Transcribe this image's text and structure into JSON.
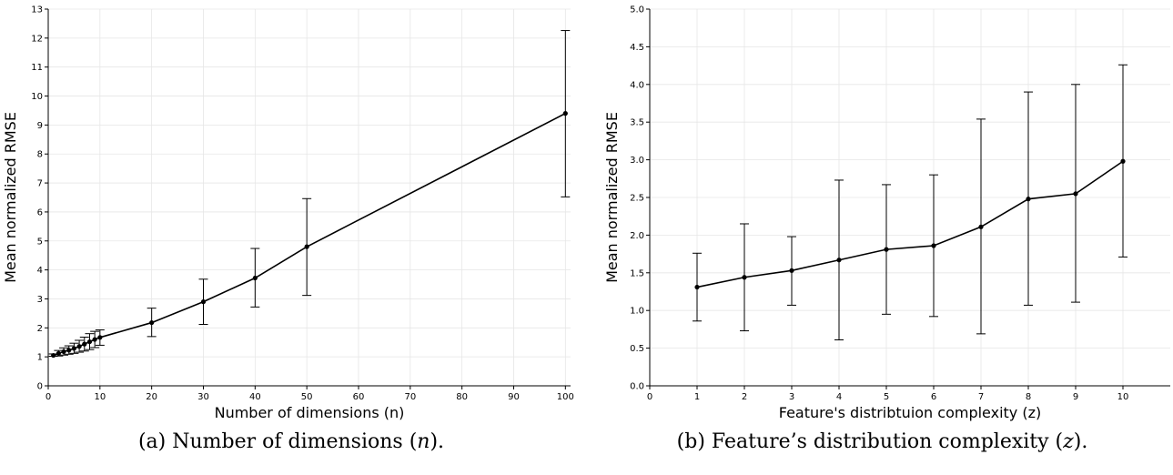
{
  "chart_data": [
    {
      "type": "line",
      "xlabel": "Number of dimensions (n)",
      "ylabel": "Mean normalized RMSE",
      "xlim": [
        0,
        101
      ],
      "ylim": [
        0,
        13
      ],
      "xticks": [
        0,
        10,
        20,
        30,
        40,
        50,
        60,
        70,
        80,
        90,
        100
      ],
      "yticks": [
        0,
        1,
        2,
        3,
        4,
        5,
        6,
        7,
        8,
        9,
        10,
        11,
        12,
        13
      ],
      "grid": true,
      "error_bars": true,
      "caption": {
        "prefix": "(a) Number of dimensions (",
        "var": "n",
        "suffix": ")."
      },
      "series": [
        {
          "x": [
            1,
            2,
            3,
            4,
            5,
            6,
            7,
            8,
            9,
            10,
            20,
            30,
            40,
            50,
            100
          ],
          "y": [
            1.05,
            1.12,
            1.18,
            1.23,
            1.29,
            1.36,
            1.44,
            1.52,
            1.6,
            1.67,
            2.18,
            2.9,
            3.72,
            4.8,
            9.4
          ],
          "yerr_low": [
            1.02,
            1.03,
            1.06,
            1.09,
            1.12,
            1.16,
            1.2,
            1.25,
            1.32,
            1.4,
            1.7,
            2.12,
            2.72,
            3.12,
            6.52
          ],
          "yerr_high": [
            1.1,
            1.22,
            1.31,
            1.38,
            1.47,
            1.57,
            1.68,
            1.8,
            1.88,
            1.93,
            2.68,
            3.68,
            4.74,
            6.46,
            12.26
          ]
        }
      ]
    },
    {
      "type": "line",
      "xlabel": "Feature's distribtuion complexity (z)",
      "ylabel": "Mean normalized RMSE",
      "xlim": [
        0,
        11
      ],
      "ylim": [
        0,
        5
      ],
      "xticks": [
        0,
        1,
        2,
        3,
        4,
        5,
        6,
        7,
        8,
        9,
        10
      ],
      "yticks": [
        0.0,
        0.5,
        1.0,
        1.5,
        2.0,
        2.5,
        3.0,
        3.5,
        4.0,
        4.5,
        5.0
      ],
      "ytick_decimals": 1,
      "grid": true,
      "error_bars": true,
      "caption": {
        "prefix": "(b) Feature’s distribution complexity (",
        "var": "z",
        "suffix": ")."
      },
      "series": [
        {
          "x": [
            1,
            2,
            3,
            4,
            5,
            6,
            7,
            8,
            9,
            10
          ],
          "y": [
            1.31,
            1.44,
            1.53,
            1.67,
            1.81,
            1.86,
            2.11,
            2.48,
            2.55,
            2.98
          ],
          "yerr_low": [
            0.86,
            0.73,
            1.07,
            0.61,
            0.95,
            0.92,
            0.69,
            1.07,
            1.11,
            1.71
          ],
          "yerr_high": [
            1.76,
            2.15,
            1.98,
            2.73,
            2.67,
            2.8,
            3.54,
            3.9,
            4.0,
            4.26
          ]
        }
      ]
    }
  ]
}
